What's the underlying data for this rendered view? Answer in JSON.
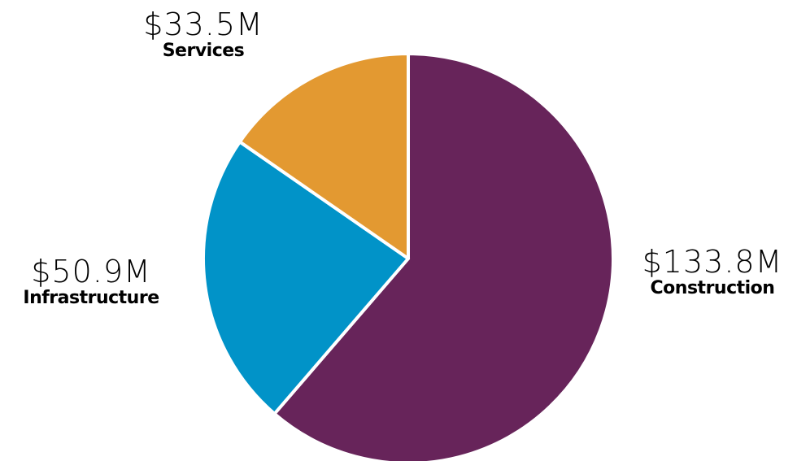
{
  "chart_data": {
    "type": "pie",
    "title": "",
    "slices": [
      {
        "label": "Construction",
        "value": 133.8,
        "display": "$133.8M",
        "color": "#67245a"
      },
      {
        "label": "Infrastructure",
        "value": 50.9,
        "display": "$50.9M",
        "color": "#0193c8"
      },
      {
        "label": "Services",
        "value": 33.5,
        "display": "$33.5M",
        "color": "#e39931"
      }
    ],
    "start_angle": "12 o'clock",
    "direction": "clockwise",
    "legend": "none",
    "slice_border_color": "#ffffff"
  }
}
